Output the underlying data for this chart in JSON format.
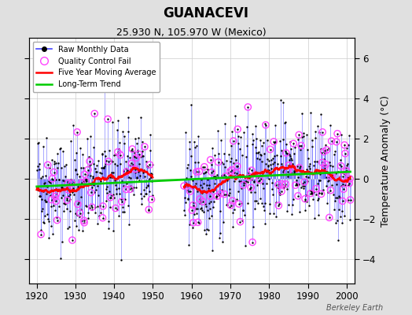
{
  "title": "GUANACEVI",
  "subtitle": "25.930 N, 105.970 W (Mexico)",
  "ylabel": "Temperature Anomaly (°C)",
  "xlabel_ticks": [
    1920,
    1930,
    1940,
    1950,
    1960,
    1970,
    1980,
    1990,
    2000
  ],
  "yticks": [
    -4,
    -2,
    0,
    2,
    4,
    6
  ],
  "ylim": [
    -5.2,
    7.0
  ],
  "xlim": [
    1918,
    2002
  ],
  "bg_color": "#e0e0e0",
  "plot_bg_color": "#ffffff",
  "watermark": "Berkeley Earth",
  "raw_line_color": "#4444ff",
  "raw_dot_color": "#000000",
  "qc_color": "#ff44ff",
  "moving_avg_color": "#ff0000",
  "trend_color": "#00cc00",
  "seed": 42
}
